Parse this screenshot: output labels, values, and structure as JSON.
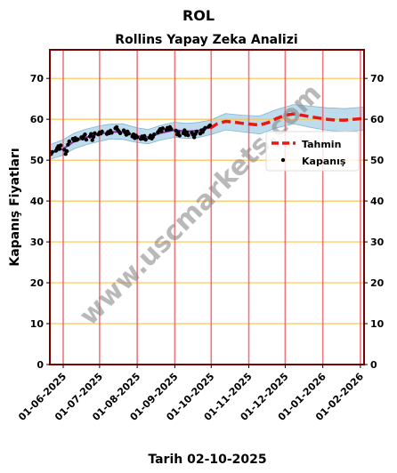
{
  "chart_data": {
    "type": "line",
    "suptitle": "ROL",
    "title": "Rollins Yapay Zeka Analizi",
    "ylabel": "Kapanış Fiyatları",
    "xlabel": "Tarih 02-10-2025",
    "ylim": [
      0,
      77
    ],
    "yticks": [
      0,
      10,
      20,
      30,
      40,
      50,
      60,
      70
    ],
    "xlim": [
      "2025-05-21",
      "2026-02-04"
    ],
    "xticks": [
      "2025-06-01",
      "2025-07-01",
      "2025-08-01",
      "2025-09-01",
      "2025-10-01",
      "2025-11-01",
      "2025-12-01",
      "2026-01-01",
      "2026-02-01"
    ],
    "xtick_labels": [
      "01-06-2025",
      "01-07-2025",
      "01-08-2025",
      "01-09-2025",
      "01-10-2025",
      "01-11-2025",
      "01-12-2025",
      "01-01-2026",
      "01-02-2026"
    ],
    "grid": "horizontal orange at y ticks, vertical red at x ticks",
    "legend_position": "right",
    "watermark": "www.uscmarkets.com",
    "colors": {
      "forecast": "#e8170f",
      "close": "#000000",
      "trend": "#8b2ea8",
      "band": "#a8d0e6",
      "hgrid": "#ffc34d",
      "vgrid": "#e8626a",
      "frame": "#7a0000"
    },
    "series": [
      {
        "name": "Tahmin",
        "style": "dashed",
        "points": [
          [
            "2025-09-30",
            57.8
          ],
          [
            "2025-10-06",
            58.9
          ],
          [
            "2025-10-13",
            59.5
          ],
          [
            "2025-10-20",
            59.3
          ],
          [
            "2025-10-27",
            59.0
          ],
          [
            "2025-11-03",
            58.8
          ],
          [
            "2025-11-10",
            58.6
          ],
          [
            "2025-11-17",
            59.2
          ],
          [
            "2025-11-24",
            60.2
          ],
          [
            "2025-12-01",
            61.0
          ],
          [
            "2025-12-08",
            61.3
          ],
          [
            "2025-12-15",
            61.0
          ],
          [
            "2025-12-22",
            60.6
          ],
          [
            "2025-12-29",
            60.3
          ],
          [
            "2026-01-05",
            60.0
          ],
          [
            "2026-01-12",
            59.8
          ],
          [
            "2026-01-19",
            59.8
          ],
          [
            "2026-01-26",
            60.0
          ],
          [
            "2026-02-04",
            60.2
          ]
        ]
      },
      {
        "name": "Kapanış",
        "style": "points",
        "points": [
          [
            "2025-05-22",
            51.5
          ],
          [
            "2025-05-23",
            52.0
          ],
          [
            "2025-05-26",
            52.3
          ],
          [
            "2025-05-27",
            52.9
          ],
          [
            "2025-05-28",
            53.4
          ],
          [
            "2025-05-29",
            52.8
          ],
          [
            "2025-05-30",
            53.6
          ],
          [
            "2025-06-02",
            52.5
          ],
          [
            "2025-06-03",
            51.5
          ],
          [
            "2025-06-04",
            52.2
          ],
          [
            "2025-06-05",
            53.8
          ],
          [
            "2025-06-06",
            54.6
          ],
          [
            "2025-06-09",
            55.2
          ],
          [
            "2025-06-10",
            54.8
          ],
          [
            "2025-06-11",
            55.4
          ],
          [
            "2025-06-12",
            54.9
          ],
          [
            "2025-06-13",
            55.1
          ],
          [
            "2025-06-16",
            55.6
          ],
          [
            "2025-06-17",
            55.3
          ],
          [
            "2025-06-18",
            55.9
          ],
          [
            "2025-06-19",
            56.3
          ],
          [
            "2025-06-20",
            55.0
          ],
          [
            "2025-06-23",
            55.8
          ],
          [
            "2025-06-24",
            56.4
          ],
          [
            "2025-06-25",
            54.9
          ],
          [
            "2025-06-26",
            55.7
          ],
          [
            "2025-06-27",
            56.6
          ],
          [
            "2025-06-30",
            56.3
          ],
          [
            "2025-07-01",
            56.8
          ],
          [
            "2025-07-02",
            56.5
          ],
          [
            "2025-07-03",
            57.0
          ],
          [
            "2025-07-07",
            56.4
          ],
          [
            "2025-07-08",
            56.9
          ],
          [
            "2025-07-09",
            56.6
          ],
          [
            "2025-07-10",
            57.2
          ],
          [
            "2025-07-11",
            56.7
          ],
          [
            "2025-07-14",
            57.8
          ],
          [
            "2025-07-15",
            58.1
          ],
          [
            "2025-07-16",
            57.4
          ],
          [
            "2025-07-17",
            57.0
          ],
          [
            "2025-07-18",
            56.6
          ],
          [
            "2025-07-21",
            57.3
          ],
          [
            "2025-07-22",
            56.8
          ],
          [
            "2025-07-23",
            56.2
          ],
          [
            "2025-07-24",
            57.0
          ],
          [
            "2025-07-25",
            56.5
          ],
          [
            "2025-07-28",
            55.8
          ],
          [
            "2025-07-29",
            56.3
          ],
          [
            "2025-07-30",
            55.4
          ],
          [
            "2025-07-31",
            56.0
          ],
          [
            "2025-08-01",
            55.6
          ],
          [
            "2025-08-04",
            55.2
          ],
          [
            "2025-08-05",
            55.8
          ],
          [
            "2025-08-06",
            55.3
          ],
          [
            "2025-08-07",
            55.9
          ],
          [
            "2025-08-08",
            55.0
          ],
          [
            "2025-08-11",
            55.5
          ],
          [
            "2025-08-12",
            56.0
          ],
          [
            "2025-08-13",
            55.3
          ],
          [
            "2025-08-14",
            55.7
          ],
          [
            "2025-08-15",
            56.3
          ],
          [
            "2025-08-18",
            56.8
          ],
          [
            "2025-08-19",
            57.2
          ],
          [
            "2025-08-20",
            57.6
          ],
          [
            "2025-08-21",
            57.1
          ],
          [
            "2025-08-22",
            57.8
          ],
          [
            "2025-08-25",
            57.4
          ],
          [
            "2025-08-26",
            57.9
          ],
          [
            "2025-08-27",
            57.5
          ],
          [
            "2025-08-28",
            58.1
          ],
          [
            "2025-08-29",
            57.6
          ],
          [
            "2025-09-02",
            57.2
          ],
          [
            "2025-09-03",
            56.3
          ],
          [
            "2025-09-04",
            56.8
          ],
          [
            "2025-09-05",
            56.0
          ],
          [
            "2025-09-08",
            56.6
          ],
          [
            "2025-09-09",
            57.3
          ],
          [
            "2025-09-10",
            56.2
          ],
          [
            "2025-09-11",
            56.8
          ],
          [
            "2025-09-12",
            56.1
          ],
          [
            "2025-09-15",
            56.7
          ],
          [
            "2025-09-16",
            56.2
          ],
          [
            "2025-09-17",
            55.6
          ],
          [
            "2025-09-18",
            56.4
          ],
          [
            "2025-09-19",
            57.0
          ],
          [
            "2025-09-22",
            56.5
          ],
          [
            "2025-09-23",
            57.3
          ],
          [
            "2025-09-24",
            56.9
          ],
          [
            "2025-09-25",
            57.5
          ],
          [
            "2025-09-26",
            57.9
          ],
          [
            "2025-09-29",
            58.2
          ],
          [
            "2025-09-30",
            58.5
          ]
        ]
      },
      {
        "name": "",
        "style": "line",
        "points": [
          [
            "2025-05-22",
            51.8
          ],
          [
            "2025-06-01",
            52.8
          ],
          [
            "2025-06-10",
            54.6
          ],
          [
            "2025-06-20",
            55.6
          ],
          [
            "2025-07-01",
            56.4
          ],
          [
            "2025-07-10",
            56.9
          ],
          [
            "2025-07-20",
            56.9
          ],
          [
            "2025-08-01",
            55.9
          ],
          [
            "2025-08-10",
            55.6
          ],
          [
            "2025-08-20",
            56.6
          ],
          [
            "2025-09-01",
            57.4
          ],
          [
            "2025-09-10",
            57.0
          ],
          [
            "2025-09-20",
            57.2
          ],
          [
            "2025-09-30",
            58.0
          ]
        ]
      }
    ],
    "band": {
      "points": [
        [
          "2025-05-21",
          50.2,
          53.8
        ],
        [
          "2025-06-01",
          51.2,
          55.0
        ],
        [
          "2025-06-10",
          52.8,
          56.6
        ],
        [
          "2025-06-20",
          53.8,
          57.6
        ],
        [
          "2025-07-01",
          54.6,
          58.4
        ],
        [
          "2025-07-10",
          55.2,
          58.8
        ],
        [
          "2025-07-20",
          55.1,
          58.9
        ],
        [
          "2025-08-01",
          54.3,
          57.9
        ],
        [
          "2025-08-10",
          54.0,
          57.5
        ],
        [
          "2025-08-20",
          54.9,
          58.5
        ],
        [
          "2025-09-01",
          55.6,
          59.3
        ],
        [
          "2025-09-10",
          55.3,
          59.0
        ],
        [
          "2025-09-20",
          55.5,
          59.2
        ],
        [
          "2025-09-30",
          56.2,
          59.8
        ],
        [
          "2025-10-13",
          57.4,
          61.4
        ],
        [
          "2025-10-27",
          56.9,
          61.0
        ],
        [
          "2025-11-10",
          56.4,
          60.8
        ],
        [
          "2025-11-24",
          57.9,
          62.4
        ],
        [
          "2025-12-08",
          58.9,
          63.6
        ],
        [
          "2025-12-22",
          58.0,
          63.2
        ],
        [
          "2026-01-05",
          57.3,
          62.8
        ],
        [
          "2026-01-19",
          57.0,
          62.6
        ],
        [
          "2026-02-04",
          57.3,
          63.0
        ]
      ]
    }
  }
}
